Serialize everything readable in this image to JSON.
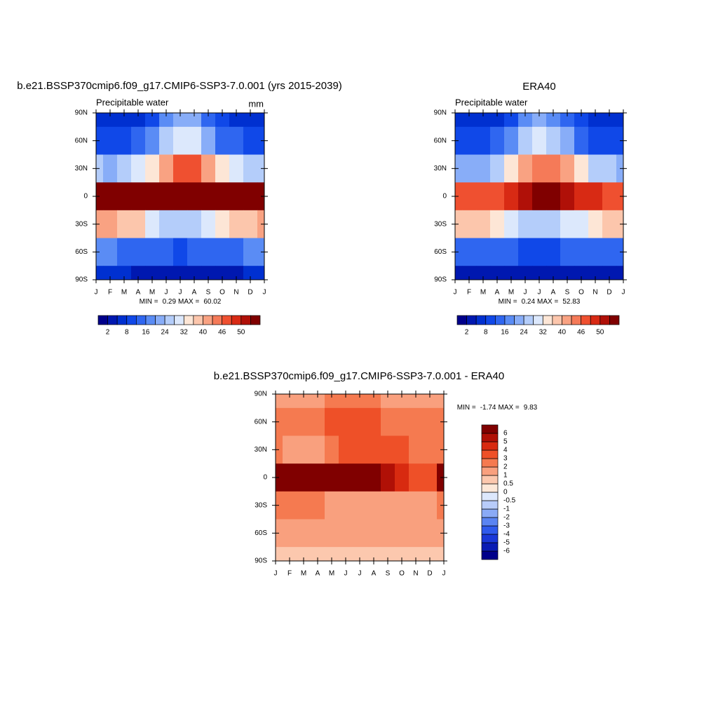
{
  "chart_data": [
    {
      "type": "contour",
      "title": "b.e21.BSSP370cmip6.f09_g17.CMIP6-SSP3-7.0.001 (yrs 2015-2039)",
      "subtitle": "Precipitable water",
      "units": "mm",
      "categories": [
        "J",
        "F",
        "M",
        "A",
        "M",
        "J",
        "J",
        "A",
        "S",
        "O",
        "N",
        "D",
        "J"
      ],
      "ylim": [
        -90,
        90
      ],
      "yticks": [
        {
          "value": 90,
          "label": "90N"
        },
        {
          "value": 60,
          "label": "60N"
        },
        {
          "value": 30,
          "label": "30N"
        },
        0,
        {
          "value": -30,
          "label": "30S"
        },
        {
          "value": -60,
          "label": "60S"
        },
        {
          "value": -90,
          "label": "90S"
        }
      ],
      "y": [
        90,
        60,
        30,
        0,
        -30,
        -60,
        -90
      ],
      "values": [
        [
          3,
          3,
          3,
          4,
          7,
          14,
          18,
          16,
          9,
          5,
          4,
          3,
          3
        ],
        [
          6,
          6,
          7,
          9,
          14,
          22,
          27,
          25,
          17,
          11,
          8,
          7,
          6
        ],
        [
          20,
          19,
          20,
          24,
          30,
          38,
          44,
          44,
          38,
          30,
          25,
          22,
          20
        ],
        [
          54,
          54,
          55,
          56,
          57,
          58,
          58,
          58,
          57,
          56,
          55,
          55,
          54
        ],
        [
          36,
          36,
          35,
          32,
          27,
          23,
          22,
          23,
          25,
          28,
          32,
          35,
          36
        ],
        [
          12,
          12,
          11,
          10,
          9,
          8,
          7,
          8,
          9,
          10,
          11,
          12,
          12
        ],
        [
          2,
          2,
          2,
          1,
          1,
          1,
          1,
          1,
          1,
          1,
          1,
          2,
          2
        ]
      ],
      "min_label": "MIN =",
      "min": 0.29,
      "max_label": "MAX =",
      "max": 60.02,
      "colorbar": {
        "orientation": "horizontal",
        "levels": [
          2,
          8,
          16,
          24,
          32,
          40,
          46,
          50
        ],
        "colors": [
          "#00008a",
          "#0018b0",
          "#0030d0",
          "#1048e8",
          "#2f66f0",
          "#5a8cf5",
          "#88adf8",
          "#b4cdfa",
          "#dce8fc",
          "#fde6d6",
          "#fcc6ac",
          "#f9a282",
          "#f57a58",
          "#ef5030",
          "#d82a14",
          "#b01008",
          "#800000"
        ]
      }
    },
    {
      "type": "contour",
      "title": "ERA40",
      "subtitle": "Precipitable water",
      "categories": [
        "J",
        "F",
        "M",
        "A",
        "M",
        "J",
        "J",
        "A",
        "S",
        "O",
        "N",
        "D",
        "J"
      ],
      "ylim": [
        -90,
        90
      ],
      "yticks": [
        {
          "value": 90,
          "label": "90N"
        },
        {
          "value": 60,
          "label": "60N"
        },
        {
          "value": 30,
          "label": "30N"
        },
        0,
        {
          "value": -30,
          "label": "30S"
        },
        {
          "value": -60,
          "label": "60S"
        },
        {
          "value": -90,
          "label": "90S"
        }
      ],
      "y": [
        90,
        60,
        30,
        0,
        -30,
        -60,
        -90
      ],
      "values": [
        [
          2,
          2,
          2,
          4,
          7,
          12,
          16,
          14,
          8,
          5,
          3,
          2,
          2
        ],
        [
          5,
          5,
          6,
          8,
          13,
          20,
          25,
          23,
          16,
          10,
          7,
          6,
          5
        ],
        [
          18,
          18,
          19,
          22,
          28,
          36,
          42,
          42,
          36,
          29,
          23,
          20,
          18
        ],
        [
          44,
          43,
          44,
          45,
          47,
          49,
          50,
          50,
          48,
          47,
          46,
          45,
          44
        ],
        [
          34,
          34,
          33,
          30,
          26,
          22,
          21,
          22,
          24,
          27,
          31,
          33,
          34
        ],
        [
          10,
          10,
          10,
          9,
          8,
          7,
          7,
          7,
          8,
          9,
          10,
          10,
          10
        ],
        [
          1,
          1,
          1,
          1,
          1,
          0.5,
          0.5,
          0.5,
          0.5,
          1,
          1,
          1,
          1
        ]
      ],
      "min_label": "MIN =",
      "min": 0.24,
      "max_label": "MAX =",
      "max": 52.83,
      "colorbar": {
        "orientation": "horizontal",
        "levels": [
          2,
          8,
          16,
          24,
          32,
          40,
          46,
          50
        ],
        "colors": [
          "#00008a",
          "#0018b0",
          "#0030d0",
          "#1048e8",
          "#2f66f0",
          "#5a8cf5",
          "#88adf8",
          "#b4cdfa",
          "#dce8fc",
          "#fde6d6",
          "#fcc6ac",
          "#f9a282",
          "#f57a58",
          "#ef5030",
          "#d82a14",
          "#b01008",
          "#800000"
        ]
      }
    },
    {
      "type": "contour",
      "title": "b.e21.BSSP370cmip6.f09_g17.CMIP6-SSP3-7.0.001 - ERA40",
      "categories": [
        "J",
        "F",
        "M",
        "A",
        "M",
        "J",
        "J",
        "A",
        "S",
        "O",
        "N",
        "D",
        "J"
      ],
      "ylim": [
        -90,
        90
      ],
      "yticks": [
        {
          "value": 90,
          "label": "90N"
        },
        {
          "value": 60,
          "label": "60N"
        },
        {
          "value": 30,
          "label": "30N"
        },
        0,
        {
          "value": -30,
          "label": "30S"
        },
        {
          "value": -60,
          "label": "60S"
        },
        {
          "value": -90,
          "label": "90S"
        }
      ],
      "y": [
        90,
        60,
        30,
        0,
        -30,
        -60,
        -90
      ],
      "values": [
        [
          1.5,
          1,
          1,
          1,
          2,
          2,
          2,
          2,
          1.5,
          1.5,
          1.5,
          1,
          1.5
        ],
        [
          2,
          2,
          2,
          2.5,
          3,
          3,
          3,
          3,
          2.5,
          2,
          2,
          2,
          2
        ],
        [
          2,
          1.5,
          1.5,
          1.5,
          2,
          3,
          3,
          3,
          3,
          3,
          2.5,
          2,
          2
        ],
        [
          6,
          6,
          6,
          6,
          6,
          6,
          6,
          6,
          5,
          4,
          3,
          3,
          6
        ],
        [
          2,
          2,
          2,
          2,
          1.5,
          1.5,
          1,
          1,
          1,
          1,
          1.5,
          1.5,
          2
        ],
        [
          1,
          1,
          1,
          1,
          1,
          1,
          1,
          1,
          1,
          1,
          1,
          1,
          1
        ],
        [
          0.5,
          0.5,
          0.5,
          0.5,
          0.5,
          0.5,
          0.5,
          0.5,
          0.5,
          0.5,
          0.5,
          0.5,
          0.5
        ]
      ],
      "min_label": "MIN =",
      "min": -1.74,
      "max_label": "MAX =",
      "max": 9.83,
      "colorbar": {
        "orientation": "vertical",
        "levels": [
          -6,
          -5,
          -4,
          -3,
          -2,
          -1,
          -0.5,
          0,
          0.5,
          1,
          2,
          3,
          4,
          5,
          6
        ],
        "colors": [
          "#00008a",
          "#0a1cb4",
          "#1a38d8",
          "#2f5aec",
          "#5a84f2",
          "#8aaaf6",
          "#b8ccfa",
          "#dde8fc",
          "#fde8d8",
          "#fcc8ae",
          "#f9a07e",
          "#f57a50",
          "#ee5028",
          "#d82a10",
          "#b01006",
          "#800000"
        ]
      }
    }
  ]
}
